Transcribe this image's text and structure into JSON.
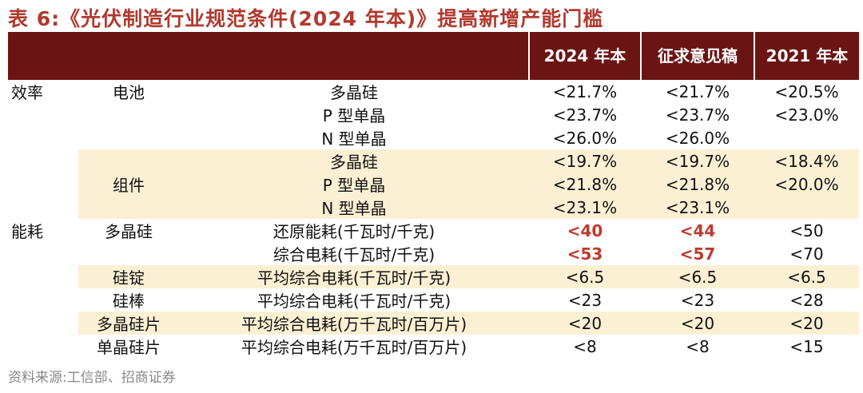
{
  "title": "表 6:《光伏制造行业规范条件(2024 年本)》提高新增产能门槛",
  "header": {
    "col_2024": "2024 年本",
    "col_draft": "征求意见稿",
    "col_2021": "2021 年本"
  },
  "rows": [
    {
      "cat": "效率",
      "sub": "电池",
      "item": "多晶硅",
      "v2024": "<21.7%",
      "vdraft": "<21.7%",
      "v2021": "<20.5%"
    },
    {
      "cat": "",
      "sub": "",
      "item": "P 型单晶",
      "v2024": "<23.7%",
      "vdraft": "<23.7%",
      "v2021": "<23.0%"
    },
    {
      "cat": "",
      "sub": "",
      "item": "N 型单晶",
      "v2024": "<26.0%",
      "vdraft": "<26.0%",
      "v2021": ""
    },
    {
      "cat": "",
      "sub": "",
      "item": "多晶硅",
      "v2024": "<19.7%",
      "vdraft": "<19.7%",
      "v2021": "<18.4%"
    },
    {
      "cat": "",
      "sub": "组件",
      "item": "P 型单晶",
      "v2024": "<21.8%",
      "vdraft": "<21.8%",
      "v2021": "<20.0%"
    },
    {
      "cat": "",
      "sub": "",
      "item": "N 型单晶",
      "v2024": "<23.1%",
      "vdraft": "<23.1%",
      "v2021": ""
    },
    {
      "cat": "能耗",
      "sub": "多晶硅",
      "item": "还原能耗(千瓦时/千克)",
      "v2024": "<40",
      "vdraft": "<44",
      "v2021": "<50"
    },
    {
      "cat": "",
      "sub": "",
      "item": "综合电耗(千瓦时/千克)",
      "v2024": "<53",
      "vdraft": "<57",
      "v2021": "<70"
    },
    {
      "cat": "",
      "sub": "硅锭",
      "item": "平均综合电耗(千瓦时/千克)",
      "v2024": "<6.5",
      "vdraft": "<6.5",
      "v2021": "<6.5"
    },
    {
      "cat": "",
      "sub": "硅棒",
      "item": "平均综合电耗(千瓦时/千克)",
      "v2024": "<23",
      "vdraft": "<23",
      "v2021": "<28"
    },
    {
      "cat": "",
      "sub": "多晶硅片",
      "item": "平均综合电耗(万千瓦时/百万片)",
      "v2024": "<20",
      "vdraft": "<20",
      "v2021": "<20"
    },
    {
      "cat": "",
      "sub": "单晶硅片",
      "item": "平均综合电耗(万千瓦时/百万片)",
      "v2024": "<8",
      "vdraft": "<8",
      "v2021": "<15"
    }
  ],
  "source": "资料来源:工信部、招商证券"
}
